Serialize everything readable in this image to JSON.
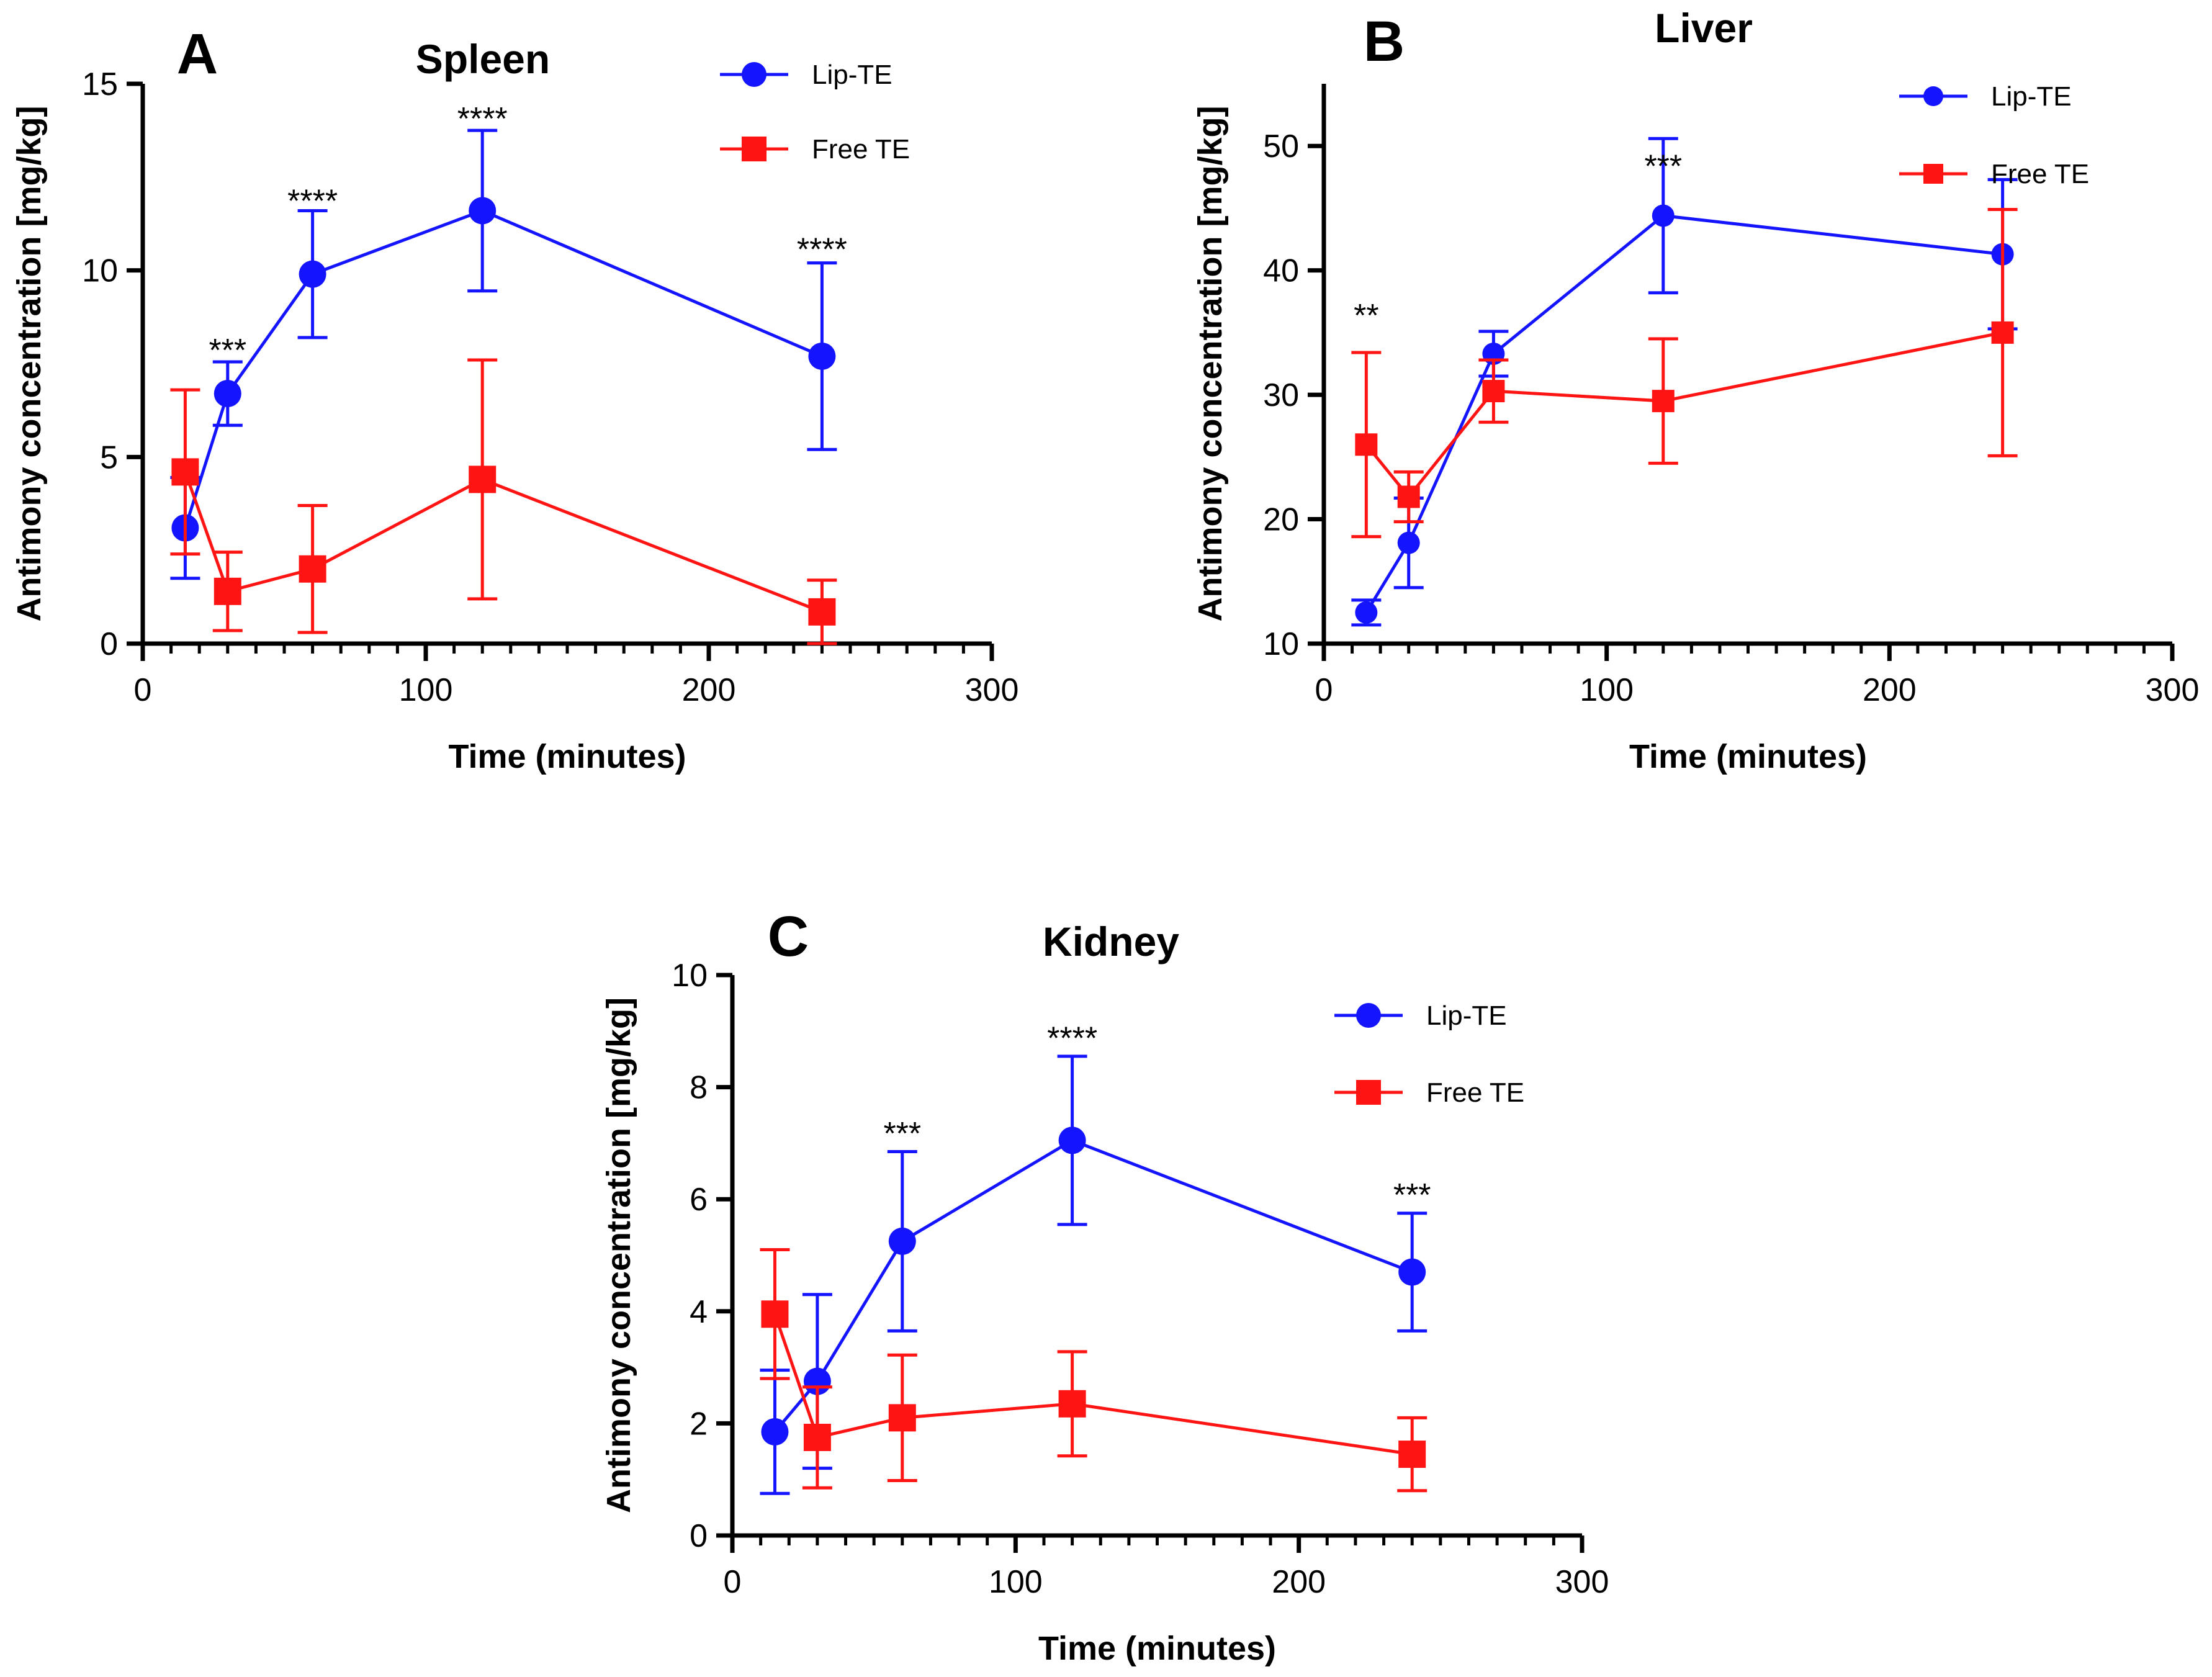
{
  "figure": {
    "background": "#ffffff"
  },
  "chart_data": [
    {
      "type": "line",
      "panel": "A",
      "title": "Spleen",
      "xlabel": "Time (minutes)",
      "ylabel": "Antimony concentration [mg/kg]",
      "xlim": [
        0,
        300
      ],
      "ylim": [
        0,
        15
      ],
      "xticks": [
        0,
        100,
        200,
        300
      ],
      "yticks": [
        0,
        5,
        10,
        15
      ],
      "legend_position": "top-right",
      "series": [
        {
          "name": "Lip-TE",
          "color": "#1414ff",
          "marker": "circle",
          "x": [
            15,
            30,
            60,
            120,
            240
          ],
          "y": [
            3.1,
            6.7,
            9.9,
            11.6,
            7.7
          ],
          "err": [
            1.35,
            0.85,
            1.7,
            2.15,
            2.5
          ]
        },
        {
          "name": "Free TE",
          "color": "#ff1414",
          "marker": "square",
          "x": [
            15,
            30,
            60,
            120,
            240
          ],
          "y": [
            4.6,
            1.4,
            2.0,
            4.4,
            0.85
          ],
          "err": [
            2.2,
            1.05,
            1.7,
            3.2,
            0.85
          ]
        }
      ],
      "annotations": [
        {
          "x": 30,
          "y": 7.9,
          "text": "***"
        },
        {
          "x": 60,
          "y": 11.9,
          "text": "****"
        },
        {
          "x": 120,
          "y": 14.1,
          "text": "****"
        },
        {
          "x": 240,
          "y": 10.6,
          "text": "****"
        }
      ]
    },
    {
      "type": "line",
      "panel": "B",
      "title": "Liver",
      "xlabel": "Time (minutes)",
      "ylabel": "Antimony concentration [mg/kg]",
      "xlim": [
        0,
        300
      ],
      "ylim": [
        10,
        55
      ],
      "xticks": [
        0,
        100,
        200,
        300
      ],
      "yticks": [
        10,
        20,
        30,
        40,
        50
      ],
      "legend_position": "top-right",
      "series": [
        {
          "name": "Lip-TE",
          "color": "#1414ff",
          "marker": "circle",
          "x": [
            15,
            30,
            60,
            120,
            240
          ],
          "y": [
            12.5,
            18.1,
            33.3,
            44.4,
            41.3
          ],
          "err": [
            1.0,
            3.6,
            1.8,
            6.2,
            6.0
          ]
        },
        {
          "name": "Free TE",
          "color": "#ff1414",
          "marker": "square",
          "x": [
            15,
            30,
            60,
            120,
            240
          ],
          "y": [
            26.0,
            21.8,
            30.3,
            29.5,
            35.0
          ],
          "err": [
            7.4,
            2.0,
            2.5,
            5.0,
            9.9
          ]
        }
      ],
      "annotations": [
        {
          "x": 15,
          "y": 36.5,
          "text": "**"
        },
        {
          "x": 120,
          "y": 48.5,
          "text": "***"
        }
      ]
    },
    {
      "type": "line",
      "panel": "C",
      "title": "Kidney",
      "xlabel": "Time (minutes)",
      "ylabel": "Antimony concentration [mg/kg]",
      "xlim": [
        0,
        300
      ],
      "ylim": [
        0,
        10
      ],
      "xticks": [
        0,
        100,
        200,
        300
      ],
      "yticks": [
        0,
        2,
        4,
        6,
        8,
        10
      ],
      "legend_position": "top-right",
      "series": [
        {
          "name": "Lip-TE",
          "color": "#1414ff",
          "marker": "circle",
          "x": [
            15,
            30,
            60,
            120,
            240
          ],
          "y": [
            1.85,
            2.75,
            5.25,
            7.05,
            4.7
          ],
          "err": [
            1.1,
            1.55,
            1.6,
            1.5,
            1.05
          ]
        },
        {
          "name": "Free TE",
          "color": "#ff1414",
          "marker": "square",
          "x": [
            15,
            30,
            60,
            120,
            240
          ],
          "y": [
            3.95,
            1.75,
            2.1,
            2.35,
            1.45
          ],
          "err": [
            1.15,
            0.9,
            1.12,
            0.93,
            0.65
          ]
        }
      ],
      "annotations": [
        {
          "x": 60,
          "y": 7.2,
          "text": "***"
        },
        {
          "x": 120,
          "y": 8.9,
          "text": "****"
        },
        {
          "x": 240,
          "y": 6.1,
          "text": "***"
        }
      ]
    }
  ]
}
